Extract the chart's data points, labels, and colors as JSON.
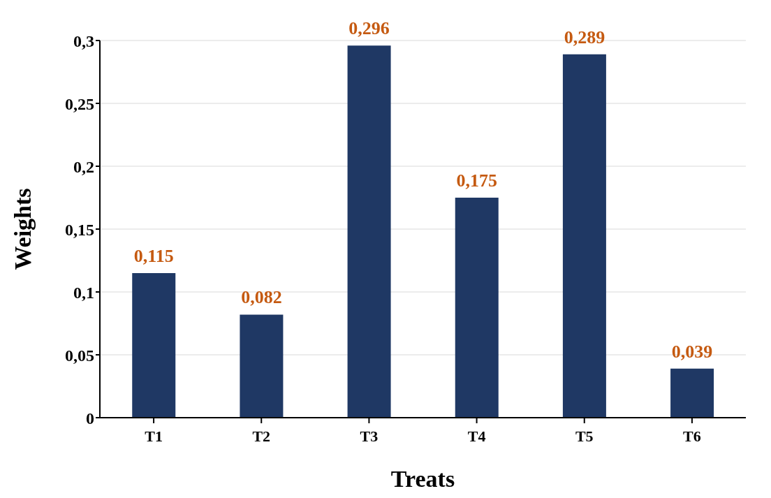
{
  "chart_data": {
    "type": "bar",
    "xlabel": "Treats",
    "ylabel": "Weights",
    "categories": [
      "T1",
      "T2",
      "T3",
      "T4",
      "T5",
      "T6"
    ],
    "values": [
      0.115,
      0.082,
      0.296,
      0.175,
      0.289,
      0.039
    ],
    "value_labels": [
      "0,115",
      "0,082",
      "0,296",
      "0,175",
      "0,289",
      "0,039"
    ],
    "color": "#1f3864",
    "ylim": [
      0,
      0.3
    ],
    "yticks": [
      0,
      {
        "value": 0.05,
        "label": "0,05"
      },
      {
        "value": 0.1,
        "label": "0,1"
      },
      {
        "value": 0.15,
        "label": "0,15"
      },
      {
        "value": 0.2,
        "label": "0,2"
      },
      {
        "value": 0.25,
        "label": "0,25"
      },
      {
        "value": 0.3,
        "label": "0,3"
      }
    ],
    "grid": "y"
  }
}
